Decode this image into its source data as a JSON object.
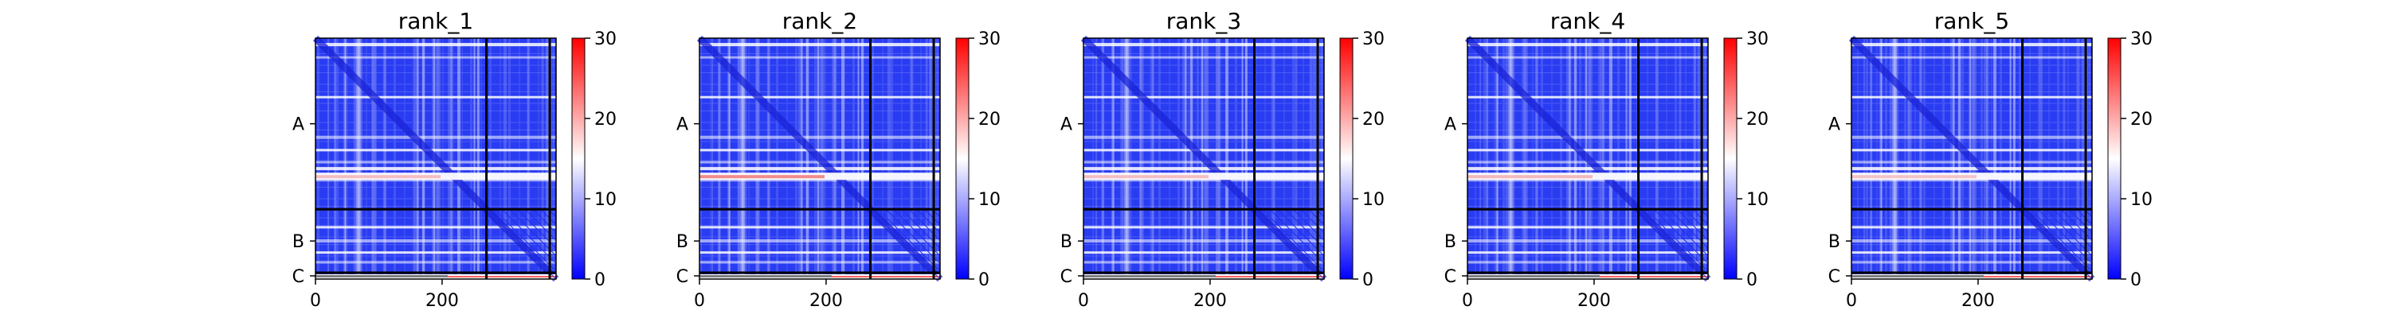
{
  "chart_data": {
    "type": "heatmap",
    "panels": [
      {
        "title": "rank_1",
        "highlight": 0.5
      },
      {
        "title": "rank_2",
        "highlight": 0.95
      },
      {
        "title": "rank_3",
        "highlight": 0.5
      },
      {
        "title": "rank_4",
        "highlight": 0.55
      },
      {
        "title": "rank_5",
        "highlight": 0.45
      }
    ],
    "n_residues": 380,
    "x_ticks": [
      0,
      200
    ],
    "x_tick_labels": [
      "0",
      "200"
    ],
    "chain_labels": [
      "A",
      "B",
      "C"
    ],
    "chain_starts": [
      0,
      270,
      370
    ],
    "colorbar": {
      "min": 0,
      "max": 30,
      "ticks": [
        0,
        10,
        20,
        30
      ],
      "tick_labels": [
        "0",
        "10",
        "20",
        "30"
      ],
      "cmap": "bwr",
      "colors": {
        "low": "#0000ff",
        "mid": "#ffffff",
        "high": "#ff0000"
      }
    },
    "grid": false,
    "legend": "none"
  }
}
